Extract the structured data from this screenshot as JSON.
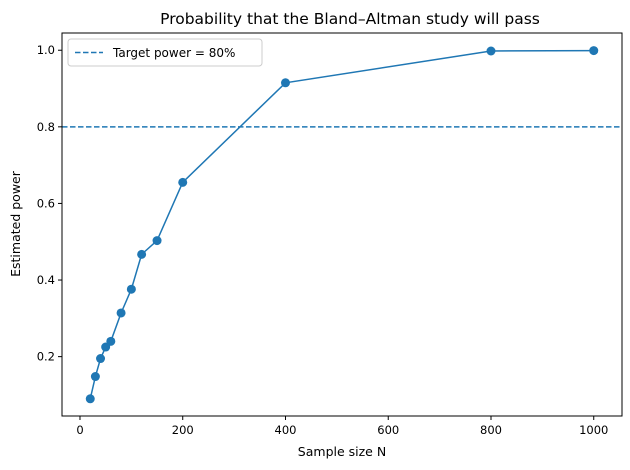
{
  "chart_data": {
    "type": "line",
    "title": "Probability that the Bland–Altman study will pass",
    "xlabel": "Sample size N",
    "ylabel": "Estimated power",
    "xlim": [
      -35,
      1055
    ],
    "ylim": [
      0.045,
      1.045
    ],
    "xticks": [
      0,
      200,
      400,
      600,
      800,
      1000
    ],
    "yticks": [
      0.2,
      0.4,
      0.6,
      0.8,
      1.0
    ],
    "xtick_labels": [
      "0",
      "200",
      "400",
      "600",
      "800",
      "1000"
    ],
    "ytick_labels": [
      "0.2",
      "0.4",
      "0.6",
      "0.8",
      "1.0"
    ],
    "grid": false,
    "legend_position": "upper-left",
    "series": [
      {
        "x": [
          20,
          30,
          40,
          50,
          60,
          80,
          100,
          120,
          150,
          200,
          400,
          800,
          1000
        ],
        "y": [
          0.09,
          0.148,
          0.195,
          0.225,
          0.24,
          0.314,
          0.376,
          0.467,
          0.503,
          0.655,
          0.915,
          0.998,
          0.999
        ],
        "color": "#1f77b4",
        "marker": "circle"
      }
    ],
    "reference_lines": [
      {
        "name": "Target power = 80%",
        "y": 0.8,
        "style": "dashed",
        "color": "#1f77b4"
      }
    ]
  }
}
